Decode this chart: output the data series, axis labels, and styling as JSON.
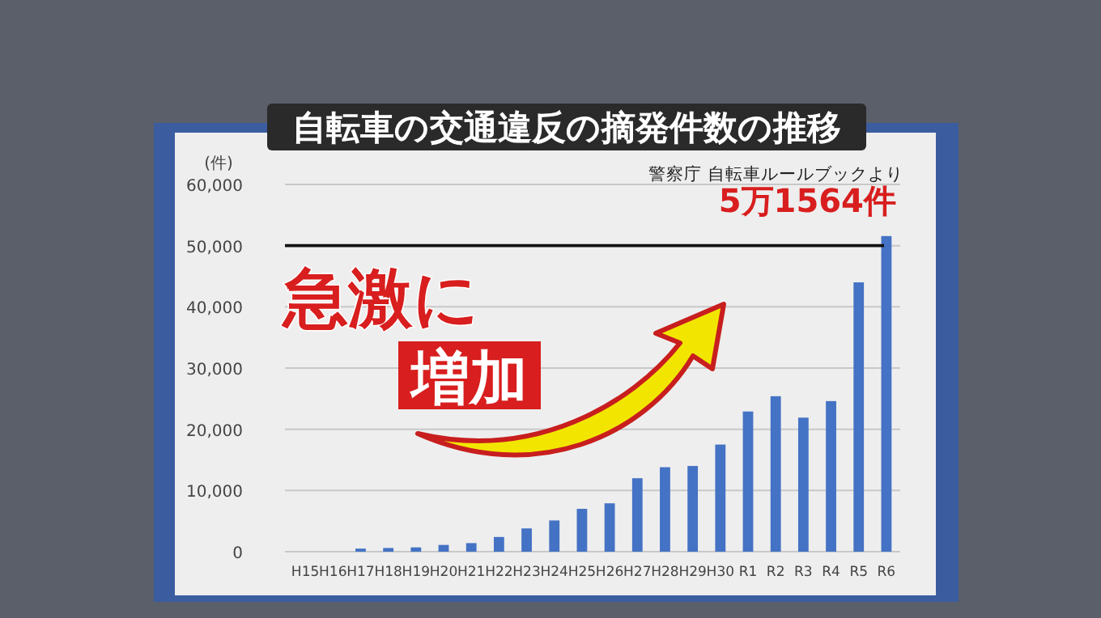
{
  "chart_data": {
    "type": "bar",
    "title": "自転車の交通違反の摘発件数の推移",
    "ylabel": "(件)",
    "categories": [
      "H15",
      "H16",
      "H17",
      "H18",
      "H19",
      "H20",
      "H21",
      "H22",
      "H23",
      "H24",
      "H25",
      "H26",
      "H27",
      "H28",
      "H29",
      "H30",
      "R1",
      "R2",
      "R3",
      "R4",
      "R5",
      "R6"
    ],
    "values": [
      null,
      null,
      500,
      600,
      700,
      1100,
      1400,
      2400,
      3800,
      5100,
      7000,
      7900,
      12000,
      13800,
      14000,
      17500,
      22900,
      25400,
      21900,
      24600,
      44000,
      51564
    ],
    "color": "#4472c4",
    "ylim": [
      0,
      60000
    ],
    "yticks": [
      0,
      {
        "value": 10000,
        "label": "10,000"
      },
      {
        "value": 20000,
        "label": "20,000"
      },
      {
        "value": 30000,
        "label": "30,000"
      },
      {
        "value": 40000,
        "label": "40,000"
      },
      {
        "value": 50000,
        "label": "50,000"
      },
      {
        "value": 60000,
        "label": "60,000"
      }
    ],
    "grid": "y",
    "ref_lines": [
      {
        "axis": "y",
        "value": 50000,
        "color": "#111111"
      }
    ],
    "annotations": [
      "警察庁 自転車ルールブックより",
      "急激に",
      "増加",
      {
        "text": "5万1564件",
        "x": "R6",
        "y": 51564
      }
    ]
  }
}
